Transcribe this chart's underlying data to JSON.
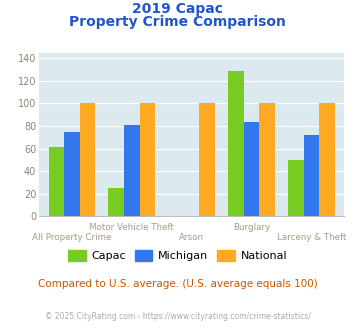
{
  "title_line1": "2019 Capac",
  "title_line2": "Property Crime Comparison",
  "categories": [
    "All Property Crime",
    "Motor Vehicle Theft",
    "Arson",
    "Burglary",
    "Larceny & Theft"
  ],
  "capac": [
    61,
    25,
    0,
    129,
    50
  ],
  "michigan": [
    75,
    81,
    0,
    84,
    72
  ],
  "national": [
    100,
    100,
    100,
    100,
    100
  ],
  "colors": {
    "capac": "#77cc22",
    "michigan": "#3377ee",
    "national": "#ffaa22"
  },
  "ylim": [
    0,
    145
  ],
  "yticks": [
    0,
    20,
    40,
    60,
    80,
    100,
    120,
    140
  ],
  "title_color": "#2255cc",
  "bg_color": "#dce9ef",
  "grid_color": "#ffffff",
  "footer_text": "© 2025 CityRating.com - https://www.cityrating.com/crime-statistics/",
  "compare_text": "Compared to U.S. average. (U.S. average equals 100)",
  "compare_color": "#cc5500",
  "footer_color": "#aaaaaa",
  "legend_labels": [
    "Capac",
    "Michigan",
    "National"
  ],
  "xtick_color": "#aa9988"
}
